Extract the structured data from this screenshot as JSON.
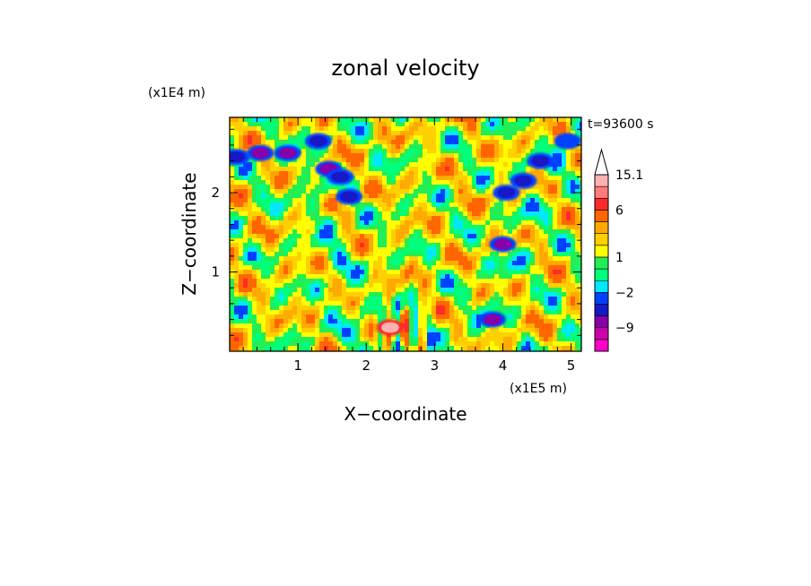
{
  "chart_data": {
    "type": "heatmap",
    "title": "zonal velocity",
    "xlabel": "X−coordinate",
    "ylabel": "Z−coordinate",
    "x_scale_label": "(x1E5 m)",
    "y_scale_label": "(x1E4 m)",
    "time_label": "t=93600 s",
    "xlim": [
      0,
      5.15
    ],
    "ylim": [
      0,
      2.95
    ],
    "x_ticks": [
      "1",
      "2",
      "3",
      "4",
      "5"
    ],
    "y_ticks": [
      "1",
      "2"
    ],
    "colorbar": {
      "levels": [
        -15,
        -12,
        -9,
        -6,
        -4,
        -2,
        -1,
        0,
        1,
        2,
        3,
        4,
        6,
        9,
        12,
        15.1
      ],
      "labeled_levels": [
        "15.1",
        "6",
        "1",
        "−2",
        "−9"
      ],
      "colors": [
        "#ff00cc",
        "#cc00aa",
        "#8800aa",
        "#1818c8",
        "#0040ff",
        "#00e8ff",
        "#00ff7a",
        "#22ee55",
        "#ffff00",
        "#ffd000",
        "#ffaa00",
        "#ff6600",
        "#ff2a2a",
        "#ff7a7a",
        "#ffb0b0"
      ]
    },
    "features": [
      {
        "x": 0.1,
        "y": 2.45,
        "value": -6
      },
      {
        "x": 0.45,
        "y": 2.5,
        "value": -8
      },
      {
        "x": 0.85,
        "y": 2.5,
        "value": -9
      },
      {
        "x": 1.3,
        "y": 2.65,
        "value": -6
      },
      {
        "x": 1.45,
        "y": 2.3,
        "value": -7
      },
      {
        "x": 1.62,
        "y": 2.2,
        "value": -6
      },
      {
        "x": 1.75,
        "y": 1.95,
        "value": -6
      },
      {
        "x": 4.05,
        "y": 2.0,
        "value": -6
      },
      {
        "x": 4.3,
        "y": 2.15,
        "value": -6
      },
      {
        "x": 4.55,
        "y": 2.4,
        "value": -5
      },
      {
        "x": 4.0,
        "y": 1.35,
        "value": -9
      },
      {
        "x": 3.85,
        "y": 0.4,
        "value": -9
      },
      {
        "x": 4.95,
        "y": 2.65,
        "value": -4
      },
      {
        "x": 2.35,
        "y": 0.3,
        "value": 12
      }
    ]
  }
}
